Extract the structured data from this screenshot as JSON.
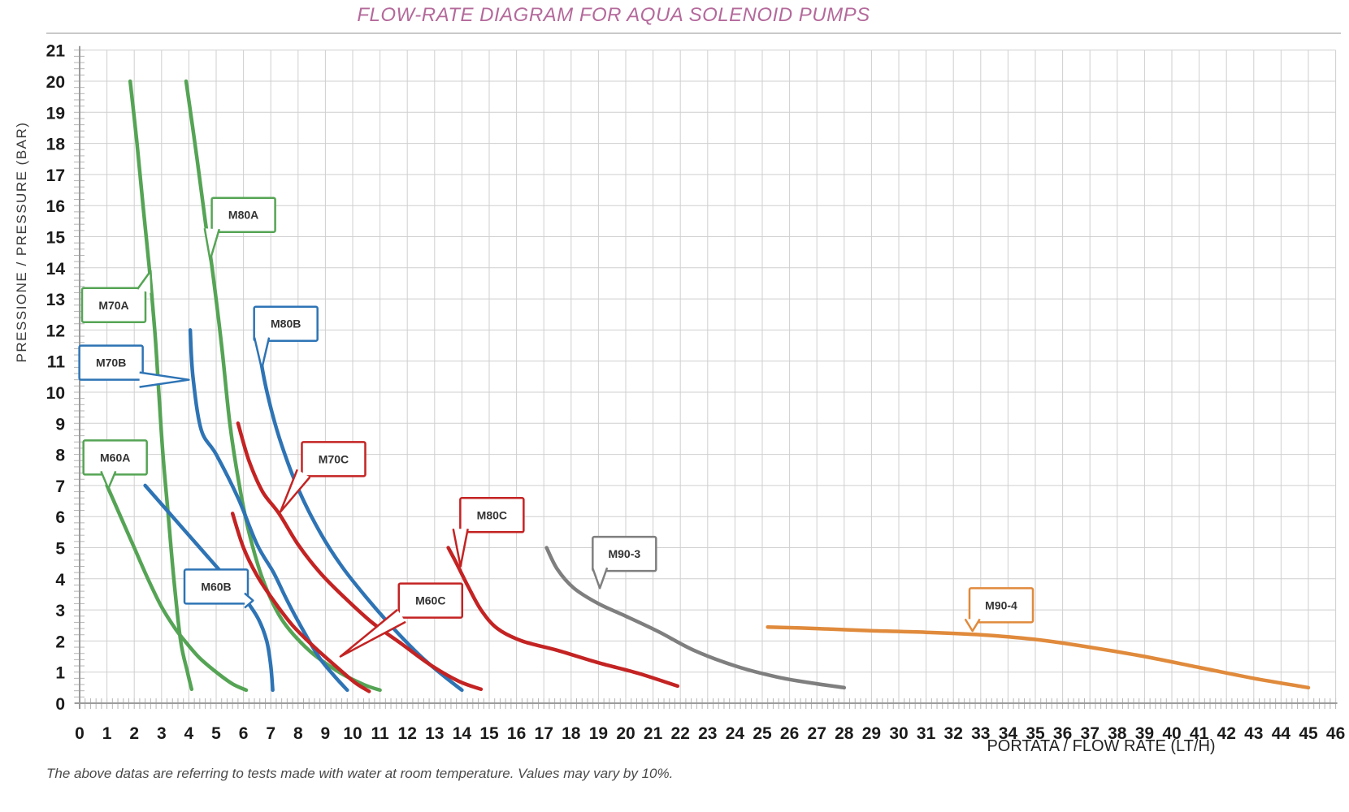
{
  "title": "FLOW-RATE DIAGRAM FOR AQUA SOLENOID PUMPS",
  "footnote": "The above datas are referring to tests made with water at room temperature. Values may vary by 10%.",
  "colors": {
    "title": "#b4699b",
    "green": "#55a455",
    "blue": "#2e74b5",
    "red": "#c42323",
    "gray": "#7f7f7f",
    "orange": "#e08a3c",
    "grid": "#cfcfcf",
    "minor_tick": "#b5b5b5",
    "spine": "#9b9b9b"
  },
  "chart_data": {
    "type": "line",
    "title": "FLOW-RATE DIAGRAM FOR AQUA SOLENOID PUMPS",
    "xlabel": "PORTATA / FLOW RATE (LT/H)",
    "ylabel": "PRESSIONE / PRESSURE (BAR)",
    "xlim": [
      0,
      46
    ],
    "ylim": [
      0,
      21
    ],
    "grid": true,
    "legend_position": "callouts-on-curves",
    "x_ticks": [
      0,
      1,
      2,
      3,
      4,
      5,
      6,
      7,
      8,
      9,
      10,
      11,
      12,
      13,
      14,
      15,
      16,
      17,
      18,
      19,
      20,
      21,
      22,
      23,
      24,
      25,
      26,
      27,
      28,
      29,
      30,
      31,
      32,
      33,
      34,
      35,
      36,
      37,
      38,
      39,
      40,
      41,
      42,
      43,
      44,
      45,
      46
    ],
    "y_ticks": [
      0,
      1,
      2,
      3,
      4,
      5,
      6,
      7,
      8,
      9,
      10,
      11,
      12,
      13,
      14,
      15,
      16,
      17,
      18,
      19,
      20,
      21
    ],
    "series": [
      {
        "name": "M60A",
        "color": "#55a455",
        "points": [
          [
            1.0,
            7.0
          ],
          [
            1.5,
            6.0
          ],
          [
            2.0,
            5.0
          ],
          [
            2.5,
            4.0
          ],
          [
            3.0,
            3.1
          ],
          [
            3.5,
            2.4
          ],
          [
            3.9,
            1.95
          ],
          [
            4.4,
            1.45
          ],
          [
            5.0,
            1.0
          ],
          [
            5.6,
            0.62
          ],
          [
            6.1,
            0.42
          ]
        ],
        "callout": {
          "box_center": [
            1.3,
            7.9
          ],
          "tip": [
            1.05,
            6.9
          ]
        }
      },
      {
        "name": "M70A",
        "color": "#55a455",
        "points": [
          [
            1.85,
            20.0
          ],
          [
            2.1,
            18.0
          ],
          [
            2.32,
            16.0
          ],
          [
            2.55,
            14.0
          ],
          [
            2.75,
            12.0
          ],
          [
            2.9,
            10.0
          ],
          [
            3.05,
            8.0
          ],
          [
            3.25,
            6.0
          ],
          [
            3.45,
            4.0
          ],
          [
            3.7,
            2.0
          ],
          [
            3.95,
            1.0
          ],
          [
            4.1,
            0.45
          ]
        ],
        "callout": {
          "box_center": [
            1.25,
            12.8
          ],
          "tip": [
            2.6,
            13.9
          ]
        }
      },
      {
        "name": "M80A",
        "color": "#55a455",
        "points": [
          [
            3.9,
            20.0
          ],
          [
            4.3,
            17.5
          ],
          [
            4.6,
            15.5
          ],
          [
            4.85,
            14.0
          ],
          [
            5.2,
            11.5
          ],
          [
            5.5,
            9.0
          ],
          [
            5.85,
            7.0
          ],
          [
            6.2,
            5.5
          ],
          [
            6.7,
            4.0
          ],
          [
            7.4,
            2.7
          ],
          [
            8.4,
            1.7
          ],
          [
            9.5,
            1.0
          ],
          [
            10.4,
            0.6
          ],
          [
            11.0,
            0.42
          ]
        ],
        "callout": {
          "box_center": [
            6.0,
            15.7
          ],
          "tip": [
            4.78,
            14.25
          ]
        }
      },
      {
        "name": "M60B",
        "color": "#2e74b5",
        "points": [
          [
            2.4,
            7.0
          ],
          [
            3.2,
            6.2
          ],
          [
            4.0,
            5.4
          ],
          [
            4.8,
            4.6
          ],
          [
            5.5,
            3.9
          ],
          [
            6.1,
            3.3
          ],
          [
            6.55,
            2.7
          ],
          [
            6.85,
            2.0
          ],
          [
            7.0,
            1.2
          ],
          [
            7.07,
            0.42
          ]
        ],
        "callout": {
          "box_center": [
            5.0,
            3.75
          ],
          "tip": [
            6.35,
            3.3
          ]
        }
      },
      {
        "name": "M70B",
        "color": "#2e74b5",
        "points": [
          [
            4.05,
            12.0
          ],
          [
            4.15,
            10.5
          ],
          [
            4.45,
            8.8
          ],
          [
            5.0,
            8.0
          ],
          [
            5.8,
            6.6
          ],
          [
            6.5,
            5.1
          ],
          [
            7.1,
            4.2
          ],
          [
            7.6,
            3.3
          ],
          [
            8.15,
            2.4
          ],
          [
            8.75,
            1.5
          ],
          [
            9.3,
            0.9
          ],
          [
            9.8,
            0.42
          ]
        ],
        "callout": {
          "box_center": [
            1.15,
            10.95
          ],
          "tip": [
            4.0,
            10.4
          ]
        }
      },
      {
        "name": "M80B",
        "color": "#2e74b5",
        "points": [
          [
            6.5,
            12.0
          ],
          [
            6.7,
            10.7
          ],
          [
            7.0,
            9.5
          ],
          [
            7.4,
            8.3
          ],
          [
            8.0,
            6.9
          ],
          [
            8.8,
            5.5
          ],
          [
            9.6,
            4.4
          ],
          [
            10.5,
            3.4
          ],
          [
            11.5,
            2.4
          ],
          [
            12.5,
            1.5
          ],
          [
            13.3,
            0.9
          ],
          [
            14.0,
            0.42
          ]
        ],
        "callout": {
          "box_center": [
            7.55,
            12.2
          ],
          "tip": [
            6.67,
            10.75
          ]
        }
      },
      {
        "name": "M60C",
        "color": "#c42323",
        "points": [
          [
            5.6,
            6.1
          ],
          [
            6.0,
            5.0
          ],
          [
            6.5,
            4.1
          ],
          [
            7.1,
            3.3
          ],
          [
            7.8,
            2.5
          ],
          [
            8.6,
            1.8
          ],
          [
            9.5,
            1.1
          ],
          [
            10.1,
            0.65
          ],
          [
            10.6,
            0.38
          ]
        ],
        "callout": {
          "box_center": [
            12.85,
            3.3
          ],
          "tip": [
            9.55,
            1.5
          ]
        }
      },
      {
        "name": "M70C",
        "color": "#c42323",
        "points": [
          [
            5.8,
            9.0
          ],
          [
            6.2,
            7.8
          ],
          [
            6.7,
            6.8
          ],
          [
            7.3,
            6.1
          ],
          [
            8.0,
            5.1
          ],
          [
            8.8,
            4.2
          ],
          [
            9.7,
            3.4
          ],
          [
            10.7,
            2.6
          ],
          [
            11.8,
            1.9
          ],
          [
            12.9,
            1.2
          ],
          [
            13.9,
            0.7
          ],
          [
            14.7,
            0.45
          ]
        ],
        "callout": {
          "box_center": [
            9.3,
            7.85
          ],
          "tip": [
            7.35,
            6.15
          ]
        }
      },
      {
        "name": "M80C",
        "color": "#c42323",
        "points": [
          [
            13.5,
            5.0
          ],
          [
            13.8,
            4.5
          ],
          [
            14.2,
            3.8
          ],
          [
            14.7,
            3.0
          ],
          [
            15.3,
            2.4
          ],
          [
            16.2,
            2.0
          ],
          [
            17.5,
            1.7
          ],
          [
            19.0,
            1.3
          ],
          [
            20.5,
            0.95
          ],
          [
            21.9,
            0.55
          ]
        ],
        "callout": {
          "box_center": [
            15.1,
            6.05
          ],
          "tip": [
            13.95,
            4.4
          ]
        }
      },
      {
        "name": "M90-3",
        "color": "#7f7f7f",
        "points": [
          [
            17.1,
            5.0
          ],
          [
            17.5,
            4.3
          ],
          [
            18.1,
            3.7
          ],
          [
            19.0,
            3.2
          ],
          [
            20.0,
            2.8
          ],
          [
            21.2,
            2.3
          ],
          [
            22.5,
            1.7
          ],
          [
            24.0,
            1.2
          ],
          [
            25.5,
            0.85
          ],
          [
            26.8,
            0.65
          ],
          [
            28.0,
            0.5
          ]
        ],
        "callout": {
          "box_center": [
            19.95,
            4.8
          ],
          "tip": [
            19.05,
            3.7
          ]
        }
      },
      {
        "name": "M90-4",
        "color": "#e08a3c",
        "points": [
          [
            25.2,
            2.45
          ],
          [
            27.0,
            2.4
          ],
          [
            29.0,
            2.33
          ],
          [
            31.0,
            2.28
          ],
          [
            33.0,
            2.2
          ],
          [
            35.0,
            2.05
          ],
          [
            37.0,
            1.8
          ],
          [
            39.0,
            1.5
          ],
          [
            41.0,
            1.15
          ],
          [
            43.0,
            0.8
          ],
          [
            45.0,
            0.5
          ]
        ],
        "callout": {
          "box_center": [
            33.75,
            3.15
          ],
          "tip": [
            32.7,
            2.32
          ]
        }
      }
    ]
  }
}
